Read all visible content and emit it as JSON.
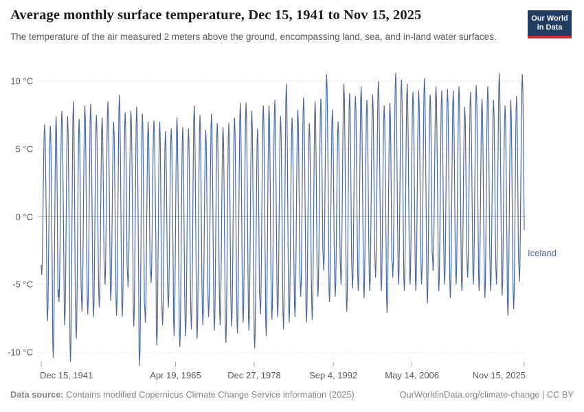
{
  "header": {
    "title": "Average monthly surface temperature, Dec 15, 1941 to Nov 15, 2025",
    "subtitle": "The temperature of the air measured 2 meters above the ground, encompassing land, sea, and in-land water surfaces.",
    "logo": {
      "line1": "Our World",
      "line2": "in Data"
    }
  },
  "footer": {
    "source_label": "Data source:",
    "source_text": " Contains modified Copernicus Climate Change Service information (2025)",
    "right_text": "OurWorldinData.org/climate-change | CC BY"
  },
  "colors": {
    "line_blue": "#4c6a9c",
    "logo_navy": "#1d3d63",
    "logo_red": "#d42b21",
    "grid_dashed": "#dedede",
    "zero_line": "#c6c6c6",
    "tick_mark": "#a5a5a5",
    "title_text": "#1d1d1d",
    "axis_text": "#5b5b5b",
    "footer_text": "#888888"
  },
  "chart_data": {
    "type": "line",
    "title": "Average monthly surface temperature, Dec 15, 1941 to Nov 15, 2025",
    "series_label": "Iceland",
    "unit": "°C",
    "line_color": "#4c6a9c",
    "x_start": "Dec 1941",
    "x_end": "Nov 2025",
    "months_total": 1008,
    "grid": "dashed horizontal",
    "legend_position": "right of line end",
    "ylim": [
      -11.2,
      10.9
    ],
    "y_ticks": [
      {
        "label": "10 °C",
        "value": 10
      },
      {
        "label": "5 °C",
        "value": 5
      },
      {
        "label": "0 °C",
        "value": 0
      },
      {
        "label": "-5 °C",
        "value": -5
      },
      {
        "label": "-10 °C",
        "value": -10
      }
    ],
    "x_ticks": [
      {
        "label": "Dec 15, 1941",
        "month_index": 0,
        "align": "left"
      },
      {
        "label": "Apr 19, 1965",
        "month_index": 280,
        "align": "center"
      },
      {
        "label": "Dec 27, 1978",
        "month_index": 444,
        "align": "center"
      },
      {
        "label": "Sep 4, 1992",
        "month_index": 609,
        "align": "center"
      },
      {
        "label": "May 14, 2006",
        "month_index": 773,
        "align": "center"
      },
      {
        "label": "Nov 15, 2025",
        "month_index": 1007,
        "align": "right"
      }
    ],
    "seasonal_model": "monthly value = mid + amp * cos(pi*(month-7)/6) using each year's summer max and winter min",
    "yearly_extremes_columns": [
      "year",
      "summer_max_c",
      "winter_min_c"
    ],
    "yearly_extremes": [
      [
        1942,
        6.8,
        -4.3
      ],
      [
        1943,
        6.7,
        -7.7
      ],
      [
        1944,
        7.4,
        -10.4
      ],
      [
        1945,
        7.8,
        -6.3
      ],
      [
        1946,
        7.4,
        -8.0
      ],
      [
        1947,
        8.5,
        -10.7
      ],
      [
        1948,
        7.2,
        -9.0
      ],
      [
        1949,
        8.2,
        -7.0
      ],
      [
        1950,
        8.3,
        -7.2
      ],
      [
        1951,
        7.5,
        -7.4
      ],
      [
        1952,
        7.3,
        -6.7
      ],
      [
        1953,
        8.5,
        -5.0
      ],
      [
        1954,
        7.0,
        -6.2
      ],
      [
        1955,
        9.0,
        -7.3
      ],
      [
        1956,
        7.7,
        -7.4
      ],
      [
        1957,
        7.8,
        -5.2
      ],
      [
        1958,
        8.1,
        -8.1
      ],
      [
        1959,
        7.6,
        -11.0
      ],
      [
        1960,
        7.0,
        -7.8
      ],
      [
        1961,
        7.1,
        -4.9
      ],
      [
        1962,
        7.0,
        -9.5
      ],
      [
        1963,
        6.3,
        -8.0
      ],
      [
        1964,
        6.5,
        -6.7
      ],
      [
        1965,
        7.3,
        -8.8
      ],
      [
        1966,
        6.6,
        -9.6
      ],
      [
        1967,
        6.5,
        -8.8
      ],
      [
        1968,
        8.2,
        -8.3
      ],
      [
        1969,
        7.5,
        -9.0
      ],
      [
        1970,
        6.4,
        -8.0
      ],
      [
        1971,
        7.6,
        -7.4
      ],
      [
        1972,
        6.9,
        -8.4
      ],
      [
        1973,
        6.6,
        -8.0
      ],
      [
        1974,
        6.9,
        -9.3
      ],
      [
        1975,
        7.3,
        -8.1
      ],
      [
        1976,
        8.4,
        -8.6
      ],
      [
        1977,
        8.4,
        -7.8
      ],
      [
        1978,
        7.8,
        -8.4
      ],
      [
        1979,
        6.5,
        -9.7
      ],
      [
        1980,
        8.2,
        -7.2
      ],
      [
        1981,
        8.2,
        -8.8
      ],
      [
        1982,
        8.6,
        -7.6
      ],
      [
        1983,
        7.4,
        -7.4
      ],
      [
        1984,
        9.8,
        -8.3
      ],
      [
        1985,
        7.3,
        -7.8
      ],
      [
        1986,
        7.9,
        -7.4
      ],
      [
        1987,
        8.8,
        -5.9
      ],
      [
        1988,
        6.9,
        -7.8
      ],
      [
        1989,
        8.5,
        -7.6
      ],
      [
        1990,
        8.7,
        -5.9
      ],
      [
        1991,
        10.5,
        -4.0
      ],
      [
        1992,
        7.9,
        -6.3
      ],
      [
        1993,
        7.0,
        -5.9
      ],
      [
        1994,
        9.8,
        -5.0
      ],
      [
        1995,
        9.1,
        -7.0
      ],
      [
        1996,
        8.9,
        -5.3
      ],
      [
        1997,
        9.6,
        -5.5
      ],
      [
        1998,
        8.6,
        -6.0
      ],
      [
        1999,
        9.0,
        -5.5
      ],
      [
        2000,
        10.0,
        -4.5
      ],
      [
        2001,
        8.2,
        -5.5
      ],
      [
        2002,
        8.4,
        -7.1
      ],
      [
        2003,
        10.6,
        -4.5
      ],
      [
        2004,
        10.1,
        -5.0
      ],
      [
        2005,
        9.8,
        -5.5
      ],
      [
        2006,
        9.2,
        -5.0
      ],
      [
        2007,
        9.3,
        -5.5
      ],
      [
        2008,
        10.2,
        -5.0
      ],
      [
        2009,
        9.0,
        -6.4
      ],
      [
        2010,
        9.6,
        -4.0
      ],
      [
        2011,
        9.3,
        -5.5
      ],
      [
        2012,
        9.4,
        -5.0
      ],
      [
        2013,
        9.3,
        -6.0
      ],
      [
        2014,
        9.6,
        -5.0
      ],
      [
        2015,
        8.1,
        -5.5
      ],
      [
        2016,
        9.2,
        -4.5
      ],
      [
        2017,
        9.7,
        -5.0
      ],
      [
        2018,
        8.7,
        -5.5
      ],
      [
        2019,
        9.6,
        -6.0
      ],
      [
        2020,
        8.6,
        -5.5
      ],
      [
        2021,
        10.6,
        -5.0
      ],
      [
        2022,
        8.2,
        -5.8
      ],
      [
        2023,
        8.6,
        -7.3
      ],
      [
        2024,
        8.9,
        -6.8
      ],
      [
        2025,
        10.5,
        -4.8
      ]
    ]
  }
}
